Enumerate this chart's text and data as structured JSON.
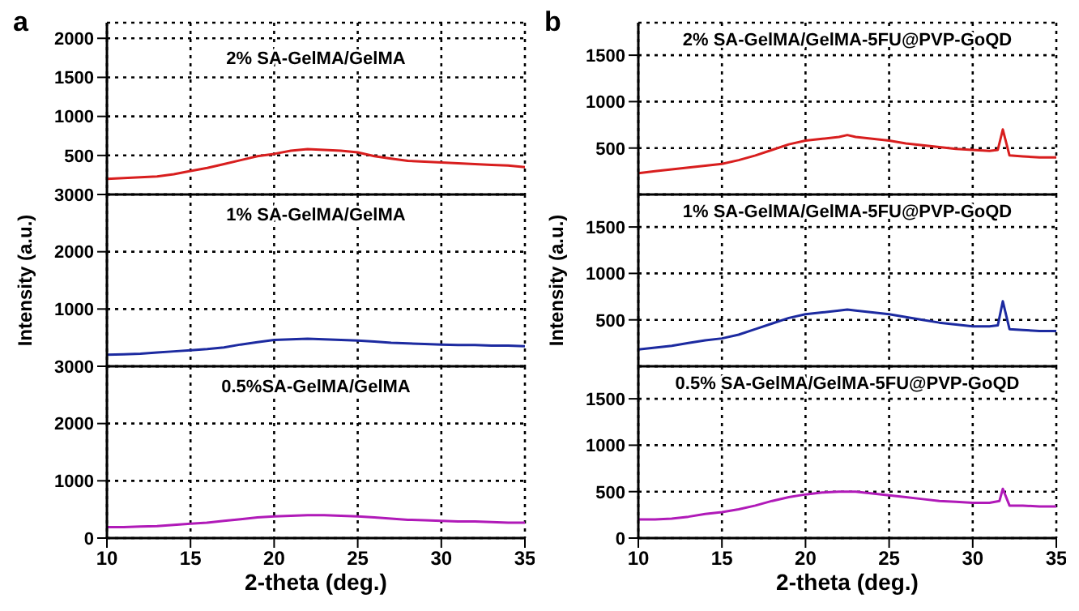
{
  "chart_data": [
    {
      "type": "line",
      "title": "a",
      "xlim": [
        10,
        35
      ],
      "xticks": [
        10,
        15,
        20,
        25,
        30,
        35
      ],
      "ylim": [
        0,
        2200
      ],
      "yticks": [
        500,
        1000,
        1500,
        2000
      ],
      "grid": true,
      "line_style": "solid",
      "tick_labels": "y",
      "series": [
        {
          "name": "2% SA-GelMA/GelMA",
          "color": "#d81e1e",
          "x": [
            10,
            11,
            12,
            13,
            14,
            15,
            16,
            17,
            18,
            19,
            20,
            21,
            22,
            23,
            24,
            25,
            26,
            27,
            28,
            29,
            30,
            31,
            32,
            33,
            34,
            35
          ],
          "values": [
            200,
            210,
            220,
            230,
            260,
            300,
            340,
            390,
            440,
            490,
            520,
            560,
            580,
            570,
            560,
            540,
            490,
            460,
            430,
            420,
            410,
            400,
            390,
            380,
            370,
            350
          ]
        }
      ]
    },
    {
      "type": "line",
      "xlim": [
        10,
        35
      ],
      "xticks": [
        10,
        15,
        20,
        25,
        30,
        35
      ],
      "ylim": [
        0,
        3000
      ],
      "yticks": [
        1000,
        2000,
        3000
      ],
      "grid": true,
      "line_style": "solid",
      "tick_labels": "y",
      "ylabel": "Intensity (a.u.)",
      "series": [
        {
          "name": "1% SA-GelMA/GelMA",
          "color": "#1c2aa0",
          "x": [
            10,
            11,
            12,
            13,
            14,
            15,
            16,
            17,
            18,
            19,
            20,
            21,
            22,
            23,
            24,
            25,
            26,
            27,
            28,
            29,
            30,
            31,
            32,
            33,
            34,
            35
          ],
          "values": [
            200,
            210,
            220,
            240,
            260,
            280,
            300,
            330,
            380,
            420,
            460,
            470,
            480,
            470,
            460,
            450,
            430,
            410,
            400,
            390,
            380,
            370,
            370,
            360,
            360,
            350
          ]
        }
      ]
    },
    {
      "type": "line",
      "xlim": [
        10,
        35
      ],
      "xticks": [
        10,
        15,
        20,
        25,
        30,
        35
      ],
      "ylim": [
        0,
        3000
      ],
      "yticks": [
        0,
        1000,
        2000,
        3000
      ],
      "grid": true,
      "line_style": "solid",
      "xlabel": "2-theta (deg.)",
      "series": [
        {
          "name": "0.5%SA-GelMA/GelMA",
          "color": "#b01ab8",
          "x": [
            10,
            11,
            12,
            13,
            14,
            15,
            16,
            17,
            18,
            19,
            20,
            21,
            22,
            23,
            24,
            25,
            26,
            27,
            28,
            29,
            30,
            31,
            32,
            33,
            34,
            35
          ],
          "values": [
            190,
            190,
            200,
            210,
            230,
            250,
            270,
            300,
            330,
            360,
            380,
            390,
            400,
            400,
            390,
            380,
            360,
            340,
            320,
            310,
            300,
            290,
            290,
            280,
            270,
            270
          ]
        }
      ]
    },
    {
      "type": "line",
      "title": "b",
      "xlim": [
        10,
        35
      ],
      "xticks": [
        10,
        15,
        20,
        25,
        30,
        35
      ],
      "ylim": [
        0,
        1850
      ],
      "yticks": [
        500,
        1000,
        1500
      ],
      "grid": true,
      "line_style": "solid",
      "tick_labels": "y",
      "series": [
        {
          "name": "2% SA-GelMA/GelMA-5FU@PVP-GoQD",
          "color": "#d81e1e",
          "x": [
            10,
            11,
            12,
            13,
            14,
            15,
            16,
            17,
            18,
            19,
            20,
            21,
            22,
            22.5,
            23,
            24,
            25,
            26,
            27,
            28,
            29,
            30,
            31,
            31.5,
            31.8,
            32.2,
            33,
            34,
            35
          ],
          "values": [
            230,
            250,
            270,
            290,
            310,
            330,
            370,
            420,
            480,
            540,
            580,
            600,
            620,
            640,
            620,
            600,
            580,
            550,
            530,
            510,
            490,
            480,
            470,
            480,
            700,
            420,
            410,
            400,
            400
          ]
        }
      ]
    },
    {
      "type": "line",
      "xlim": [
        10,
        35
      ],
      "xticks": [
        10,
        15,
        20,
        25,
        30,
        35
      ],
      "ylim": [
        0,
        1850
      ],
      "yticks": [
        500,
        1000,
        1500
      ],
      "grid": true,
      "line_style": "solid",
      "tick_labels": "y",
      "ylabel": "Intensity (a.u.)",
      "series": [
        {
          "name": "1% SA-GelMA/GelMA-5FU@PVP-GoQD",
          "color": "#1c2aa0",
          "x": [
            10,
            11,
            12,
            13,
            14,
            15,
            16,
            17,
            18,
            19,
            20,
            21,
            22,
            22.5,
            23,
            24,
            25,
            26,
            27,
            28,
            29,
            30,
            31,
            31.5,
            31.8,
            32.2,
            33,
            34,
            35
          ],
          "values": [
            180,
            200,
            220,
            250,
            280,
            300,
            340,
            400,
            460,
            520,
            560,
            580,
            600,
            610,
            600,
            580,
            560,
            530,
            500,
            470,
            450,
            430,
            430,
            440,
            700,
            400,
            390,
            380,
            380
          ]
        }
      ]
    },
    {
      "type": "line",
      "xlim": [
        10,
        35
      ],
      "xticks": [
        10,
        15,
        20,
        25,
        30,
        35
      ],
      "ylim": [
        0,
        1850
      ],
      "yticks": [
        0,
        500,
        1000,
        1500
      ],
      "grid": true,
      "line_style": "solid",
      "xlabel": "2-theta (deg.)",
      "series": [
        {
          "name": "0.5% SA-GelMA/GelMA-5FU@PVP-GoQD",
          "color": "#b01ab8",
          "x": [
            10,
            11,
            12,
            13,
            14,
            15,
            16,
            17,
            18,
            19,
            20,
            21,
            22,
            22.5,
            23,
            24,
            25,
            26,
            27,
            28,
            29,
            30,
            31,
            31.6,
            31.8,
            32.2,
            33,
            34,
            35
          ],
          "values": [
            200,
            200,
            210,
            230,
            260,
            280,
            310,
            350,
            400,
            440,
            470,
            490,
            500,
            500,
            500,
            480,
            460,
            440,
            420,
            400,
            390,
            380,
            380,
            400,
            530,
            350,
            350,
            340,
            340
          ]
        }
      ]
    }
  ]
}
